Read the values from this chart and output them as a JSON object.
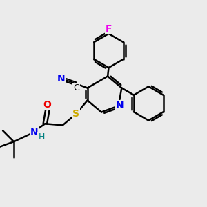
{
  "bg_color": "#ebebeb",
  "atom_colors": {
    "F": "#ee00ee",
    "N": "#0000ee",
    "O": "#ee0000",
    "S": "#ccaa00",
    "C": "#000000",
    "H": "#008080"
  },
  "bond_color": "#000000",
  "bond_width": 1.8
}
